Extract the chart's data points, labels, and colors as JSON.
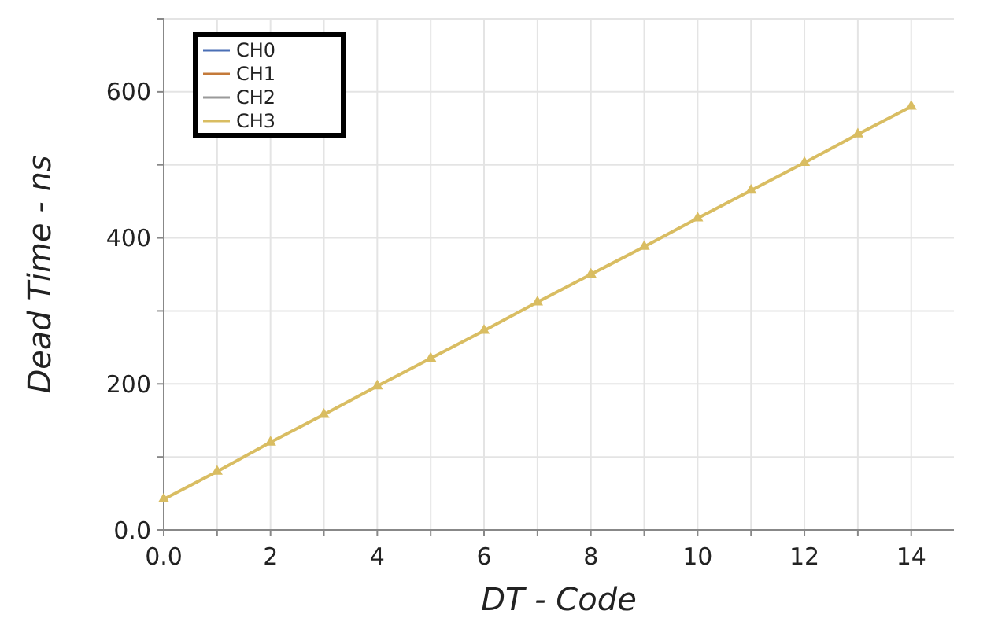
{
  "chart_data": {
    "type": "line",
    "xlabel": "DT - Code",
    "ylabel": "Dead Time - ns",
    "x": [
      0,
      1,
      2,
      3,
      4,
      5,
      6,
      7,
      8,
      9,
      10,
      11,
      12,
      13,
      14
    ],
    "series": [
      {
        "name": "CH0",
        "color": "#4a6fb5",
        "values": [
          null,
          null,
          null,
          null,
          null,
          null,
          null,
          null,
          null,
          null,
          null,
          null,
          null,
          null,
          null
        ]
      },
      {
        "name": "CH1",
        "color": "#c47a3a",
        "values": [
          null,
          null,
          null,
          null,
          null,
          null,
          null,
          null,
          null,
          null,
          null,
          null,
          null,
          null,
          null
        ]
      },
      {
        "name": "CH2",
        "color": "#9a9a9a",
        "values": [
          null,
          null,
          null,
          null,
          null,
          null,
          null,
          null,
          null,
          null,
          null,
          null,
          null,
          null,
          null
        ]
      },
      {
        "name": "CH3",
        "color": "#d9bd62",
        "values": [
          42,
          80,
          120,
          158,
          197,
          235,
          273,
          312,
          350,
          388,
          427,
          465,
          503,
          542,
          580
        ]
      }
    ],
    "xlim": [
      0,
      14.8
    ],
    "ylim": [
      0,
      700
    ],
    "xticks": [
      {
        "value": 0,
        "label": "0.0"
      },
      {
        "value": 1,
        "label": null
      },
      2,
      {
        "value": 3,
        "label": null
      },
      4,
      {
        "value": 5,
        "label": null
      },
      6,
      {
        "value": 7,
        "label": null
      },
      8,
      {
        "value": 9,
        "label": null
      },
      10,
      {
        "value": 11,
        "label": null
      },
      12,
      {
        "value": 13,
        "label": null
      },
      14
    ],
    "yticks": [
      {
        "value": 0,
        "label": "0.0"
      },
      {
        "value": 100,
        "label": null
      },
      200,
      {
        "value": 300,
        "label": null
      },
      400,
      {
        "value": 500,
        "label": null
      },
      600,
      {
        "value": 700,
        "label": null
      }
    ],
    "grid": true,
    "legend": "top left",
    "marker": "triangle",
    "line_style": "solid"
  }
}
